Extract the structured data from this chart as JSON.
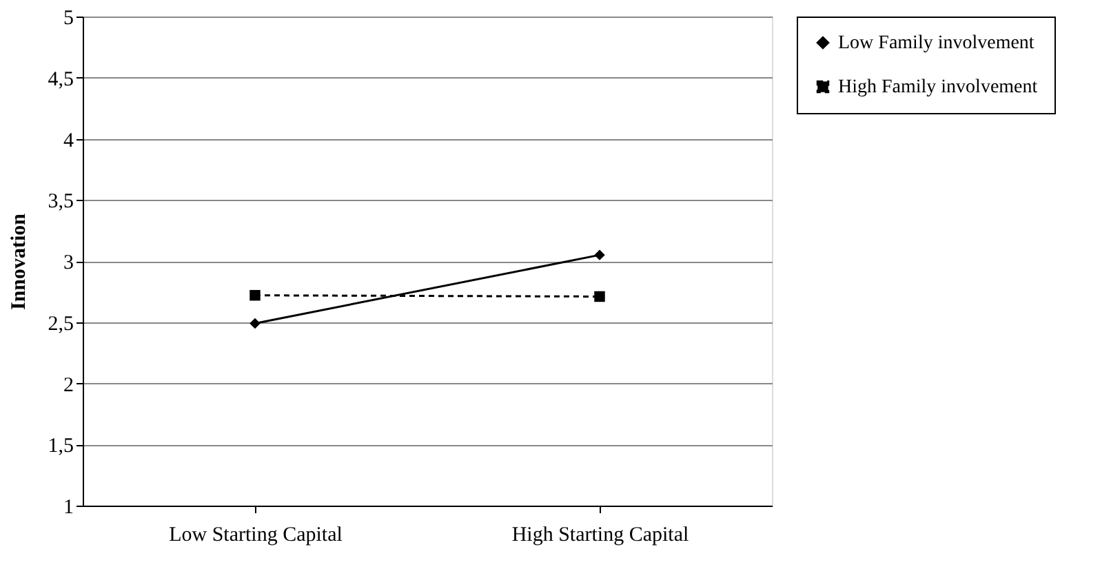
{
  "chart_data": {
    "type": "line",
    "ylabel": "Innovation",
    "categories": [
      "Low Starting Capital",
      "High Starting Capital"
    ],
    "series": [
      {
        "name": "Low Family involvement",
        "color": "#000000",
        "values": [
          2.49,
          3.05
        ],
        "marker": "diamond",
        "line_style": "solid"
      },
      {
        "name": "High Family involvement",
        "color": "#000000",
        "values": [
          2.72,
          2.71
        ],
        "marker": "square",
        "line_style": "dashed"
      }
    ],
    "ylim": [
      1,
      5
    ],
    "yticks": [
      1,
      {
        "value": 1.5,
        "label": "1,5"
      },
      2,
      {
        "value": 2.5,
        "label": "2,5"
      },
      3,
      {
        "value": 3.5,
        "label": "3,5"
      },
      4,
      {
        "value": 4.5,
        "label": "4,5"
      },
      5
    ],
    "grid": "y",
    "legend": "right"
  }
}
